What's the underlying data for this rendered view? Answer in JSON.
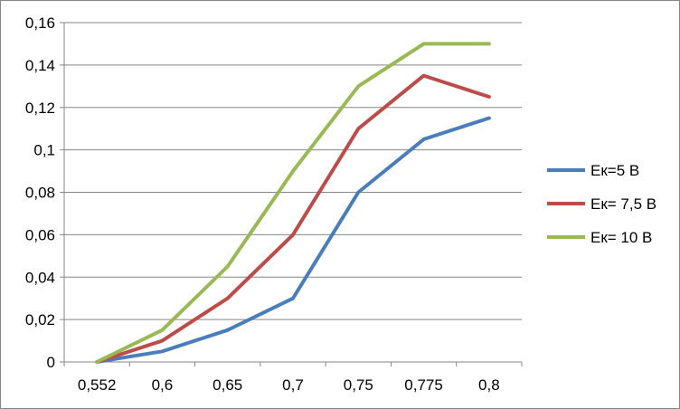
{
  "chart_data": {
    "type": "line",
    "categories": [
      "0,552",
      "0,6",
      "0,65",
      "0,7",
      "0,75",
      "0,775",
      "0,8"
    ],
    "ylim": [
      0,
      0.16
    ],
    "y_ticks": [
      0,
      0.02,
      0.04,
      0.06,
      0.08,
      0.1,
      0.12,
      0.14,
      0.16
    ],
    "y_tick_labels": [
      "0",
      "0,02",
      "0,04",
      "0,06",
      "0,08",
      "0,1",
      "0,12",
      "0,14",
      "0,16"
    ],
    "grid": "horizontal",
    "legend_position": "right",
    "series": [
      {
        "name": "Eк=5 В",
        "color": "#4a7ebb",
        "values": [
          0,
          0.005,
          0.015,
          0.03,
          0.08,
          0.105,
          0.115
        ]
      },
      {
        "name": "Eк= 7,5 В",
        "color": "#be4b48",
        "values": [
          0,
          0.01,
          0.03,
          0.06,
          0.11,
          0.135,
          0.125
        ]
      },
      {
        "name": "Eк= 10 В",
        "color": "#98b954",
        "values": [
          0,
          0.015,
          0.045,
          0.09,
          0.13,
          0.15,
          0.15
        ]
      }
    ]
  }
}
